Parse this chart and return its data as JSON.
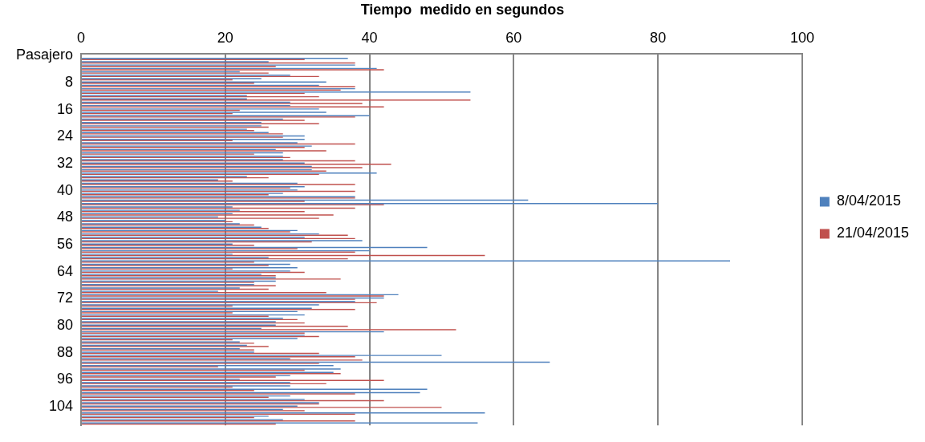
{
  "chart_data": {
    "type": "bar",
    "orientation": "horizontal",
    "title": "Tiempo  medido en segundos",
    "categories": [
      "Pasajero",
      null,
      null,
      null,
      null,
      null,
      null,
      null,
      "8",
      null,
      null,
      null,
      null,
      null,
      null,
      null,
      "16",
      null,
      null,
      null,
      null,
      null,
      null,
      null,
      "24",
      null,
      null,
      null,
      null,
      null,
      null,
      null,
      "32",
      null,
      null,
      null,
      null,
      null,
      null,
      null,
      "40",
      null,
      null,
      null,
      null,
      null,
      null,
      null,
      "48",
      null,
      null,
      null,
      null,
      null,
      null,
      null,
      "56",
      null,
      null,
      null,
      null,
      null,
      null,
      null,
      "64",
      null,
      null,
      null,
      null,
      null,
      null,
      null,
      "72",
      null,
      null,
      null,
      null,
      null,
      null,
      null,
      "80",
      null,
      null,
      null,
      null,
      null,
      null,
      null,
      "88",
      null,
      null,
      null,
      null,
      null,
      null,
      null,
      "96",
      null,
      null,
      null,
      null,
      null,
      null,
      null,
      "104",
      null,
      null,
      null,
      null,
      null
    ],
    "series": [
      {
        "name": "8/04/2015",
        "color": "#4f81bd",
        "values": [
          null,
          37,
          26,
          38,
          41,
          22,
          29,
          25,
          34,
          33,
          38,
          54,
          23,
          23,
          29,
          29,
          33,
          34,
          40,
          28,
          25,
          25,
          23,
          26,
          31,
          31,
          30,
          32,
          27,
          28,
          28,
          28,
          31,
          32,
          32,
          41,
          23,
          19,
          30,
          31,
          30,
          28,
          38,
          62,
          80,
          21,
          22,
          21,
          19,
          20,
          22,
          25,
          30,
          33,
          31,
          39,
          21,
          48,
          40,
          21,
          26,
          90,
          29,
          30,
          29,
          25,
          27,
          27,
          24,
          22,
          19,
          44,
          42,
          38,
          33,
          32,
          30,
          31,
          28,
          27,
          27,
          25,
          42,
          31,
          30,
          22,
          23,
          22,
          24,
          50,
          29,
          65,
          35,
          36,
          35,
          29,
          22,
          29,
          29,
          48,
          47,
          29,
          31,
          33,
          30,
          28,
          56,
          26,
          28,
          55
        ]
      },
      {
        "name": "21/04/2015",
        "color": "#c0504d",
        "values": [
          null,
          31,
          38,
          27,
          42,
          26,
          33,
          21,
          24,
          38,
          36,
          31,
          33,
          54,
          39,
          42,
          22,
          21,
          38,
          31,
          33,
          26,
          24,
          28,
          28,
          21,
          38,
          31,
          34,
          24,
          29,
          38,
          43,
          39,
          34,
          33,
          26,
          21,
          38,
          29,
          38,
          26,
          38,
          31,
          42,
          38,
          31,
          35,
          33,
          21,
          24,
          26,
          29,
          37,
          38,
          32,
          24,
          30,
          38,
          56,
          37,
          24,
          26,
          21,
          31,
          27,
          36,
          24,
          27,
          26,
          34,
          42,
          38,
          41,
          21,
          38,
          21,
          26,
          30,
          31,
          37,
          52,
          31,
          33,
          21,
          24,
          26,
          24,
          33,
          38,
          39,
          33,
          19,
          31,
          36,
          27,
          42,
          34,
          21,
          24,
          38,
          26,
          42,
          33,
          50,
          31,
          38,
          24,
          38,
          27
        ]
      }
    ],
    "xlim": [
      0,
      100
    ],
    "xticks": [
      0,
      20,
      40,
      60,
      80,
      100
    ],
    "grid": "x",
    "legend": "right"
  }
}
